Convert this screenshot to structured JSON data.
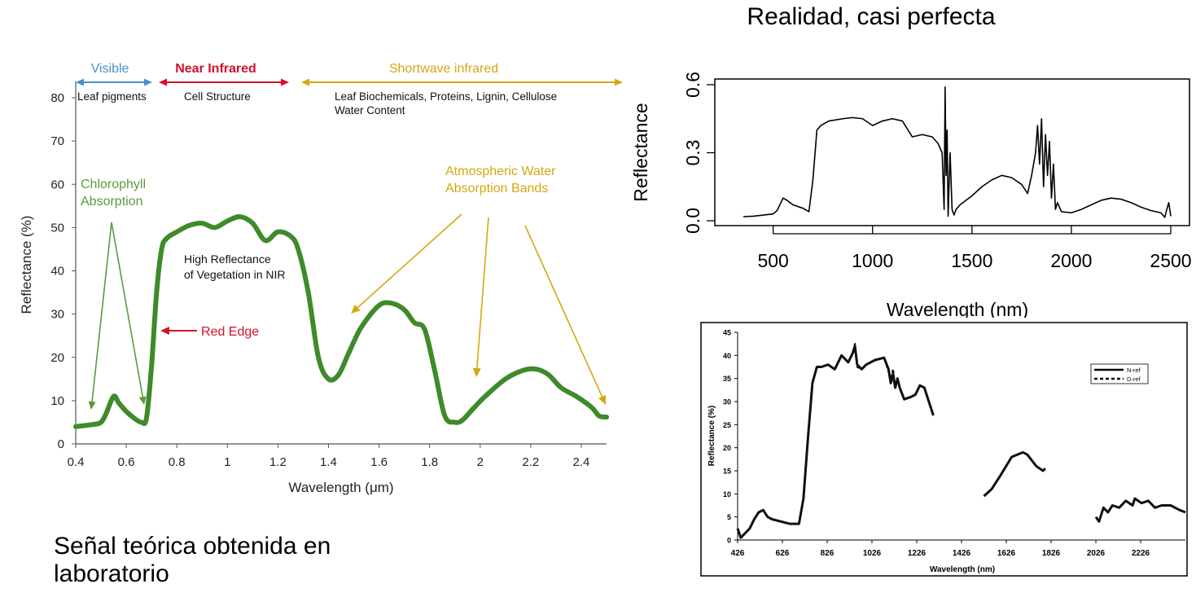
{
  "slide": {
    "title_right": "Realidad, casi perfecta",
    "caption_left": "Señal teórica obtenida en laboratorio"
  },
  "colors": {
    "veg": "#3f8a2a",
    "visible": "#4a90c8",
    "nir": "#d0112b",
    "swir": "#d4a810",
    "green_label": "#5a9a3a"
  },
  "chart_data": [
    {
      "type": "line",
      "xlabel": "Wavelength (μm)",
      "ylabel": "Reflectance (%)",
      "xlim": [
        0.4,
        2.5
      ],
      "ylim": [
        0,
        80
      ],
      "xticks": [
        "0.4",
        "0.6",
        "0.8",
        "1",
        "1.2",
        "1.4",
        "1.6",
        "1.8",
        "2",
        "2.2",
        "2.4"
      ],
      "yticks": [
        "0",
        "10",
        "20",
        "30",
        "40",
        "50",
        "60",
        "70",
        "80"
      ],
      "series": [
        {
          "x": [
            0.4,
            0.47,
            0.5,
            0.52,
            0.55,
            0.57,
            0.6,
            0.63,
            0.66,
            0.68,
            0.7,
            0.72,
            0.74,
            0.76,
            0.8,
            0.85,
            0.9,
            0.95,
            1.0,
            1.05,
            1.1,
            1.15,
            1.2,
            1.25,
            1.28,
            1.32,
            1.36,
            1.4,
            1.44,
            1.48,
            1.53,
            1.6,
            1.65,
            1.7,
            1.74,
            1.78,
            1.82,
            1.86,
            1.9,
            1.93,
            1.97,
            2.02,
            2.1,
            2.17,
            2.22,
            2.27,
            2.32,
            2.38,
            2.44,
            2.47,
            2.5
          ],
          "y": [
            4,
            4.5,
            5,
            7,
            11,
            9.5,
            7.5,
            6,
            5,
            6,
            18,
            35,
            45,
            47.5,
            49,
            50.5,
            51,
            50,
            51.5,
            52.5,
            51,
            47,
            49,
            48,
            45,
            35,
            20,
            15,
            16,
            21,
            27,
            32,
            32.5,
            31,
            28,
            26.5,
            17,
            6.5,
            5,
            5.5,
            8,
            11,
            15,
            17,
            17.3,
            16,
            13,
            11,
            8.5,
            6.5,
            6.2
          ]
        }
      ],
      "headers": [
        {
          "label": "Visible",
          "sub": [
            "Leaf pigments"
          ],
          "color_key": "visible"
        },
        {
          "label": "Near Infrared",
          "sub": [
            "Cell Structure"
          ],
          "color_key": "nir"
        },
        {
          "label": "Shortwave infrared",
          "sub": [
            "Leaf Biochemicals, Proteins, Lignin, Cellulose",
            "Water Content"
          ],
          "color_key": "swir"
        }
      ],
      "annotations": {
        "chlorophyll": [
          "Chlorophyll",
          "Absorption"
        ],
        "high_reflectance": [
          "High Reflectance",
          "of Vegetation in NIR"
        ],
        "red_edge": "Red Edge",
        "water": [
          "Atmospheric Water",
          "Absorption Bands"
        ]
      }
    },
    {
      "type": "line",
      "xlabel": "Wavelength (nm)",
      "ylabel": "Reflectance",
      "xlim": [
        350,
        2500
      ],
      "ylim": [
        0,
        0.6
      ],
      "xticks": [
        500,
        1000,
        1500,
        2000,
        2500
      ],
      "yticks": [
        "0.0",
        "0.3",
        "0.6"
      ],
      "series": [
        {
          "x": [
            350,
            400,
            450,
            500,
            520,
            550,
            570,
            600,
            650,
            680,
            700,
            720,
            740,
            780,
            850,
            900,
            950,
            1000,
            1050,
            1100,
            1150,
            1200,
            1250,
            1300,
            1330,
            1350,
            1360,
            1365,
            1370,
            1375,
            1380,
            1390,
            1400,
            1410,
            1420,
            1440,
            1500,
            1550,
            1600,
            1650,
            1700,
            1750,
            1780,
            1800,
            1820,
            1830,
            1840,
            1850,
            1860,
            1870,
            1880,
            1890,
            1900,
            1910,
            1920,
            1930,
            1950,
            2000,
            2050,
            2100,
            2150,
            2200,
            2250,
            2300,
            2350,
            2400,
            2450,
            2470,
            2480,
            2490,
            2500
          ],
          "y": [
            0.018,
            0.02,
            0.025,
            0.03,
            0.045,
            0.1,
            0.09,
            0.07,
            0.055,
            0.04,
            0.18,
            0.4,
            0.42,
            0.44,
            0.45,
            0.455,
            0.45,
            0.42,
            0.44,
            0.45,
            0.44,
            0.37,
            0.38,
            0.37,
            0.34,
            0.3,
            0.05,
            0.59,
            0.2,
            0.4,
            0.02,
            0.3,
            0.05,
            0.025,
            0.05,
            0.07,
            0.11,
            0.15,
            0.18,
            0.2,
            0.19,
            0.16,
            0.12,
            0.2,
            0.3,
            0.42,
            0.25,
            0.45,
            0.15,
            0.38,
            0.2,
            0.35,
            0.1,
            0.25,
            0.05,
            0.08,
            0.04,
            0.035,
            0.05,
            0.07,
            0.09,
            0.1,
            0.095,
            0.08,
            0.06,
            0.045,
            0.035,
            0.015,
            0.05,
            0.08,
            0.02
          ]
        }
      ]
    },
    {
      "type": "line",
      "xlabel": "Wavelength (nm)",
      "ylabel": "Reflectance (%)",
      "xlim": [
        426,
        2426
      ],
      "ylim": [
        0,
        45
      ],
      "xticks": [
        "426",
        "626",
        "826",
        "1026",
        "1226",
        "1426",
        "1626",
        "1826",
        "2026",
        "2226"
      ],
      "yticks": [
        "0",
        "5",
        "10",
        "15",
        "20",
        "25",
        "30",
        "35",
        "40",
        "45"
      ],
      "legend": {
        "position": "top-right",
        "entries": [
          "N-ref",
          "D-ref"
        ]
      },
      "series": [
        {
          "name": "N-ref",
          "segments": [
            {
              "x": [
                426,
                440,
                460,
                480,
                500,
                520,
                540,
                560,
                580,
                620,
                660,
                700,
                720,
                740,
                760,
                780,
                800,
                830,
                860,
                890,
                920,
                940,
                950,
                960,
                980,
                1000,
                1040,
                1080,
                1100,
                1110,
                1120,
                1130,
                1140,
                1150,
                1170,
                1200,
                1220,
                1240,
                1260,
                1280,
                1300
              ],
              "y": [
                2.5,
                0.5,
                1.5,
                2.5,
                4.5,
                6,
                6.5,
                5,
                4.5,
                4,
                3.5,
                3.5,
                9,
                22,
                34,
                37.5,
                37.5,
                38,
                37,
                40,
                38.5,
                40.5,
                42,
                38,
                37,
                38,
                39,
                39.5,
                37,
                34,
                36,
                33,
                35,
                33,
                30.5,
                31,
                31.5,
                33.5,
                33,
                30,
                27
              ]
            },
            {
              "x": [
                1526,
                1560,
                1600,
                1650,
                1700,
                1720,
                1760,
                1790,
                1800
              ],
              "y": [
                9.5,
                11,
                14,
                18,
                19,
                18.5,
                16,
                15,
                15.5
              ]
            },
            {
              "x": [
                2026,
                2040,
                2060,
                2080,
                2100,
                2130,
                2160,
                2190,
                2200,
                2230,
                2260,
                2290,
                2320,
                2360,
                2400,
                2426
              ],
              "y": [
                5,
                4,
                7,
                6,
                7.5,
                7,
                8.5,
                7.5,
                9,
                8,
                8.5,
                7,
                7.5,
                7.5,
                6.5,
                6
              ]
            }
          ]
        },
        {
          "name": "D-ref",
          "segments": [
            {
              "x": [
                426,
                440,
                460,
                480,
                500,
                520,
                540,
                560,
                580,
                620,
                660,
                700,
                720,
                740,
                760,
                780,
                800,
                830,
                860,
                890,
                920,
                940,
                950,
                960,
                980,
                1000,
                1040,
                1080,
                1100,
                1110,
                1120,
                1130,
                1140,
                1150,
                1170,
                1200,
                1220,
                1240,
                1260,
                1280,
                1300
              ],
              "y": [
                2.5,
                0.5,
                1.5,
                2.5,
                4.5,
                6,
                6.5,
                5,
                4.5,
                4,
                3.5,
                3.5,
                9,
                22,
                34,
                37.5,
                37.5,
                38,
                37,
                40,
                38.5,
                40.5,
                42.5,
                37.5,
                37,
                38,
                39,
                39.5,
                36.5,
                34.5,
                37,
                33,
                35,
                33,
                30.5,
                31,
                31.5,
                33.5,
                33,
                30,
                27
              ]
            }
          ]
        }
      ]
    }
  ]
}
